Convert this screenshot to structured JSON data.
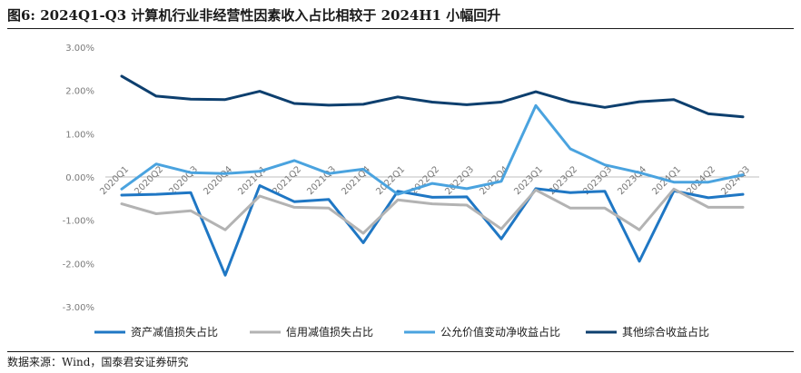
{
  "figure": {
    "title": "图6:  2024Q1-Q3 计算机行业非经营性因素收入占比相较于 2024H1 小幅回升",
    "source": "数据来源：Wind，国泰君安证券研究"
  },
  "chart_data": {
    "type": "line",
    "title": "",
    "xlabel": "",
    "ylabel": "",
    "ylim": [
      -3,
      3
    ],
    "yticks": [
      3,
      2,
      1,
      0,
      -1,
      -2,
      -3
    ],
    "ytick_labels": [
      "3.00%",
      "2.00%",
      "1.00%",
      "0.00%",
      "-1.00%",
      "-2.00%",
      "-3.00%"
    ],
    "categories": [
      "2020Q1",
      "2020Q2",
      "2020Q3",
      "2020Q4",
      "2021Q1",
      "2021Q2",
      "2021Q3",
      "2021Q4",
      "2022Q1",
      "2022Q2",
      "2022Q3",
      "2022Q4",
      "2023Q1",
      "2023Q2",
      "2023Q3",
      "2023Q4",
      "2024Q1",
      "2024Q2",
      "2024Q3"
    ],
    "grid": false,
    "legend_position": "bottom",
    "series": [
      {
        "name": "资产减值损失占比",
        "color": "#1f77c4",
        "values": [
          -0.42,
          -0.4,
          -0.36,
          -2.27,
          -0.2,
          -0.57,
          -0.52,
          -1.52,
          -0.33,
          -0.47,
          -0.46,
          -1.43,
          -0.27,
          -0.36,
          -0.33,
          -1.95,
          -0.32,
          -0.48,
          -0.4
        ]
      },
      {
        "name": "信用减值损失占比",
        "color": "#b3b3b3",
        "values": [
          -0.62,
          -0.85,
          -0.78,
          -1.22,
          -0.44,
          -0.7,
          -0.72,
          -1.3,
          -0.53,
          -0.62,
          -0.65,
          -1.2,
          -0.3,
          -0.72,
          -0.72,
          -1.22,
          -0.28,
          -0.7,
          -0.7
        ]
      },
      {
        "name": "公允价值变动净收益占比",
        "color": "#4aa3df",
        "values": [
          -0.28,
          0.3,
          0.1,
          0.08,
          0.13,
          0.38,
          0.08,
          0.18,
          -0.4,
          -0.15,
          -0.27,
          -0.1,
          1.65,
          0.65,
          0.28,
          0.1,
          -0.12,
          -0.12,
          0.05
        ]
      },
      {
        "name": "其他综合收益占比",
        "color": "#0d3f6e",
        "values": [
          2.33,
          1.87,
          1.8,
          1.79,
          1.98,
          1.7,
          1.66,
          1.68,
          1.85,
          1.73,
          1.67,
          1.73,
          1.97,
          1.74,
          1.61,
          1.74,
          1.79,
          1.46,
          1.39
        ]
      }
    ]
  }
}
